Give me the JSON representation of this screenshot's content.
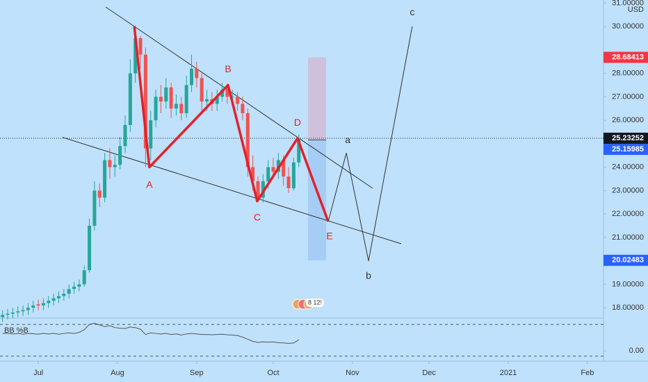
{
  "chart_data": {
    "type": "candlestick",
    "currency": "USD",
    "x": [
      -14,
      -12,
      -10,
      -8,
      -6,
      -4,
      -2,
      0,
      2,
      4,
      6,
      8,
      10,
      12,
      14,
      16,
      18,
      20,
      22,
      24,
      26,
      28,
      30,
      32,
      34,
      36,
      38,
      40,
      42,
      44,
      46,
      48,
      50,
      52,
      54,
      56,
      58,
      60,
      62,
      64,
      66,
      68,
      70,
      72,
      74,
      76,
      78,
      80,
      82,
      84,
      86,
      88,
      90,
      92,
      94,
      96,
      98,
      100,
      102
    ],
    "open": [
      17.6,
      17.7,
      17.75,
      17.8,
      17.85,
      17.9,
      18.0,
      18.15,
      18.1,
      18.2,
      18.3,
      18.4,
      18.5,
      18.6,
      18.8,
      18.9,
      19.0,
      19.6,
      21.5,
      23.0,
      22.7,
      24.3,
      24.0,
      24.1,
      24.9,
      25.8,
      28.0,
      29.5,
      28.8,
      24.8,
      26.0,
      27.0,
      26.8,
      27.4,
      26.5,
      26.7,
      26.3,
      27.5,
      28.2,
      27.8,
      26.8,
      26.9,
      26.7,
      27.0,
      27.3,
      27.0,
      27.0,
      26.7,
      26.3,
      24.0,
      23.4,
      22.7,
      23.4,
      24.0,
      23.8,
      24.3,
      23.6,
      23.1,
      24.2
    ],
    "high": [
      17.9,
      17.95,
      18.0,
      18.05,
      18.1,
      18.2,
      18.3,
      18.35,
      18.4,
      18.5,
      18.6,
      18.7,
      18.8,
      19.0,
      19.1,
      19.2,
      19.8,
      21.8,
      23.4,
      23.3,
      24.6,
      24.8,
      24.5,
      25.3,
      26.2,
      28.6,
      30.05,
      29.6,
      29.1,
      26.4,
      27.3,
      27.5,
      27.8,
      27.6,
      27.1,
      27.0,
      27.9,
      28.8,
      28.5,
      28.0,
      27.3,
      27.2,
      27.3,
      27.6,
      27.5,
      27.3,
      27.2,
      27.0,
      26.5,
      24.5,
      23.6,
      23.7,
      24.3,
      24.4,
      24.6,
      24.5,
      24.0,
      24.4,
      25.4
    ],
    "low": [
      17.4,
      17.5,
      17.55,
      17.6,
      17.65,
      17.7,
      17.8,
      17.9,
      17.9,
      18.0,
      18.1,
      18.2,
      18.3,
      18.4,
      18.6,
      18.7,
      18.9,
      19.5,
      21.3,
      22.3,
      22.5,
      23.5,
      23.6,
      23.9,
      24.6,
      25.5,
      27.6,
      28.2,
      24.0,
      24.3,
      25.7,
      26.3,
      26.5,
      26.1,
      26.2,
      26.0,
      26.1,
      27.2,
      27.4,
      26.4,
      26.4,
      26.4,
      26.4,
      26.8,
      26.7,
      26.6,
      26.4,
      26.0,
      23.6,
      23.0,
      22.5,
      22.5,
      23.1,
      23.5,
      23.5,
      23.2,
      22.9,
      23.0,
      24.0
    ],
    "close": [
      17.7,
      17.75,
      17.8,
      17.85,
      17.9,
      18.0,
      18.1,
      18.1,
      18.2,
      18.3,
      18.4,
      18.5,
      18.6,
      18.8,
      18.9,
      19.0,
      19.6,
      21.5,
      23.0,
      22.7,
      24.3,
      24.0,
      24.1,
      24.9,
      25.8,
      28.0,
      29.5,
      28.8,
      24.8,
      26.0,
      27.0,
      26.8,
      27.4,
      26.5,
      26.7,
      26.3,
      27.5,
      28.2,
      27.8,
      26.8,
      26.9,
      26.7,
      27.0,
      27.3,
      27.0,
      27.0,
      26.7,
      26.3,
      24.0,
      23.4,
      22.7,
      23.4,
      24.0,
      23.8,
      24.3,
      23.6,
      23.1,
      24.2,
      25.23252
    ],
    "up_color": "#26a69a",
    "down_color": "#ef5350",
    "xlim": [
      -15,
      221.3
    ],
    "xticks": [
      {
        "value": 0,
        "label": "Jul"
      },
      {
        "value": 31,
        "label": "Aug"
      },
      {
        "value": 62,
        "label": "Sep"
      },
      {
        "value": 92,
        "label": "Oct"
      },
      {
        "value": 123,
        "label": "Nov"
      },
      {
        "value": 153,
        "label": "Dec"
      },
      {
        "value": 184,
        "label": "2021"
      },
      {
        "value": 215,
        "label": "Feb"
      }
    ],
    "ylim": [
      17.56,
      31.13
    ],
    "yticks": [
      {
        "value": 31,
        "label": "31.00000"
      },
      {
        "value": 30,
        "label": "30.00000"
      },
      {
        "value": 28,
        "label": "28.00000"
      },
      {
        "value": 27,
        "label": "27.00000"
      },
      {
        "value": 26,
        "label": "26.00000"
      },
      {
        "value": 24,
        "label": "24.00000"
      },
      {
        "value": 23,
        "label": "23.00000"
      },
      {
        "value": 22,
        "label": "22.00000"
      },
      {
        "value": 21,
        "label": "21.00000"
      },
      {
        "value": 19,
        "label": "19.00000"
      },
      {
        "value": 18,
        "label": "18.00000"
      }
    ],
    "last_price": 25.23252,
    "position": {
      "x": [
        105.6,
        112.7
      ],
      "target": 28.68413,
      "entry": 25.15985,
      "stop": 20.02483
    },
    "pattern": {
      "color": "#e3202a",
      "x": [
        37.6,
        43.5,
        74.3,
        85.7,
        101.5,
        113.5
      ],
      "y": [
        30.0,
        24.0,
        27.5,
        22.55,
        25.23,
        21.68
      ],
      "labels": [
        null,
        "A",
        "B",
        "C",
        "D",
        "E"
      ]
    },
    "projection": {
      "color": "#333333",
      "x": [
        113.5,
        120.6,
        129.3,
        146.4
      ],
      "y": [
        21.68,
        24.6,
        20.0,
        30.0
      ],
      "labels": [
        null,
        "a",
        "b",
        "c"
      ]
    },
    "trendlines": [
      {
        "x": [
          26.4,
          130.9
        ],
        "y": [
          30.83,
          23.1
        ]
      },
      {
        "x": [
          9.5,
          142.1
        ],
        "y": [
          25.27,
          20.73
        ]
      }
    ],
    "badge": "8 12!",
    "indicator": {
      "name": "BB %B",
      "color": "#555555",
      "values": [
        0.66,
        0.66,
        0.64,
        0.66,
        0.63,
        0.66,
        0.65,
        0.63,
        0.66,
        0.64,
        0.66,
        0.63,
        0.66,
        0.68,
        0.66,
        0.7,
        0.8,
        1.0,
        1.05,
        0.98,
        0.92,
        0.95,
        0.88,
        0.86,
        0.85,
        0.9,
        0.88,
        0.82,
        0.62,
        0.68,
        0.66,
        0.64,
        0.66,
        0.62,
        0.64,
        0.6,
        0.64,
        0.66,
        0.64,
        0.62,
        0.62,
        0.61,
        0.62,
        0.63,
        0.61,
        0.6,
        0.58,
        0.52,
        0.44,
        0.36,
        0.32,
        0.34,
        0.33,
        0.34,
        0.31,
        0.3,
        0.28,
        0.3,
        0.42
      ],
      "ylim": [
        -0.39,
        1.24
      ],
      "yticks": [
        {
          "value": 0,
          "label": "0.00"
        }
      ],
      "levels": [
        1,
        -0.2
      ]
    }
  }
}
